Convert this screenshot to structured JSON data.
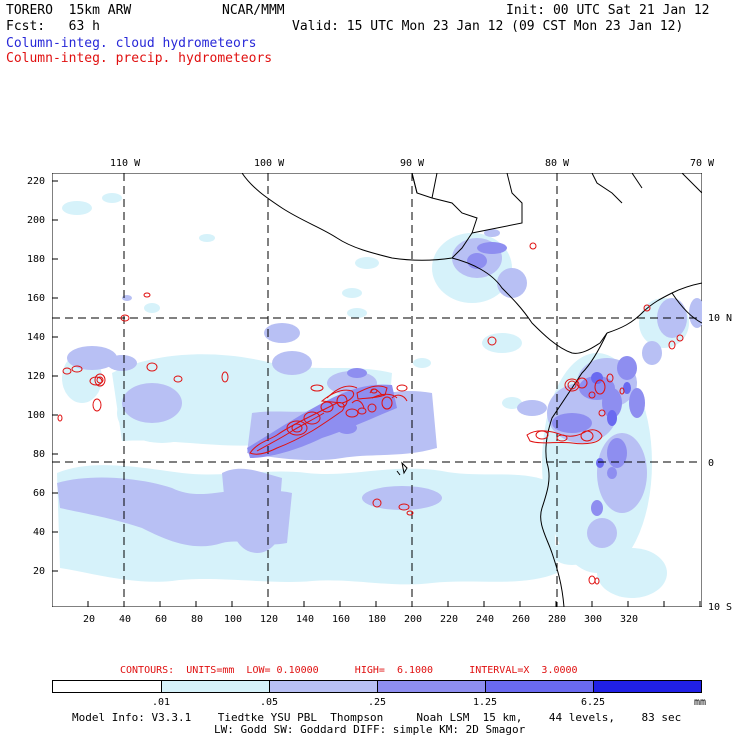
{
  "header": {
    "model_title": "TORERO  15km ARW",
    "center": "NCAR/MMM",
    "init": "Init: 00 UTC Sat 21 Jan 12",
    "forecast": "Fcst:   63 h",
    "valid": "Valid: 15 UTC Mon 23 Jan 12 (09 CST Mon 23 Jan 12)",
    "field1": "Column-integ. cloud hydrometeors",
    "field2": "Column-integ. precip. hydrometeors"
  },
  "colors": {
    "cloud_text": "#2828d8",
    "precip_text": "#e01010",
    "precip_contour": "#e01010",
    "coast": "#000000",
    "fill_level1": "#d6f2fa",
    "fill_level2": "#b8c0f4",
    "fill_level3": "#8e8ef0",
    "fill_level4": "#6a6af0",
    "fill_level5": "#4646ee",
    "fill_level6": "#2020e6"
  },
  "map": {
    "top_lon_labels": [
      "110 W",
      "100 W",
      "90 W",
      "80 W",
      "70 W"
    ],
    "right_lat_labels": [
      "10 N",
      "0",
      "10 S"
    ],
    "left_y_ticks": [
      "220",
      "200",
      "180",
      "160",
      "140",
      "120",
      "100",
      "80",
      "60",
      "40",
      "20"
    ],
    "bottom_x_ticks": [
      "20",
      "40",
      "60",
      "80",
      "100",
      "120",
      "140",
      "160",
      "180",
      "200",
      "220",
      "240",
      "260",
      "280",
      "300",
      "320"
    ]
  },
  "contour_info": {
    "label": "CONTOURS:  UNITS=mm  LOW= 0.10000      HIGH=  6.1000      INTERVAL=X  3.0000"
  },
  "colorbar": {
    "levels": [
      ".01",
      ".05",
      ".25",
      "1.25",
      "6.25"
    ],
    "units": "mm"
  },
  "footer": {
    "line1": "Model Info: V3.3.1    Tiedtke YSU PBL  Thompson     Noah LSM  15 km,    44 levels,    83 sec",
    "line2": "LW: Godd SW: Goddard DIFF: simple KM: 2D Smagor"
  }
}
